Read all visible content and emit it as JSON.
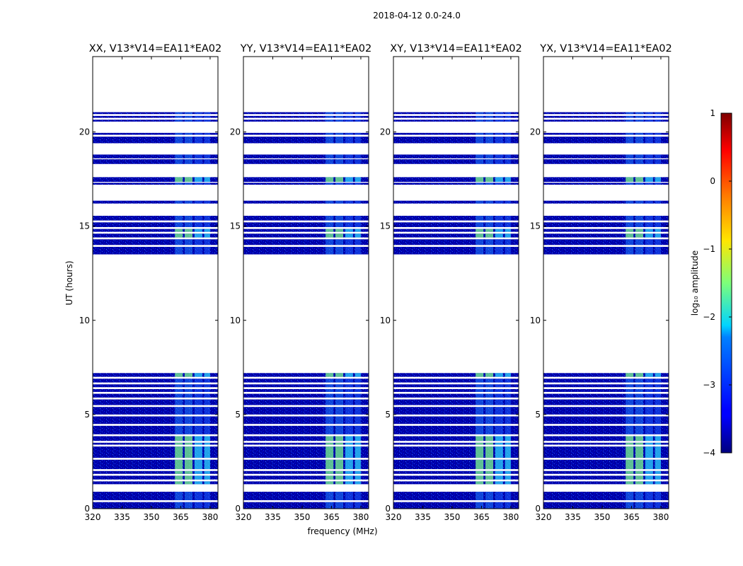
{
  "chart_data": {
    "type": "heatmap",
    "suptitle": "2018-04-12 0.0-24.0",
    "xlabel": "frequency (MHz)",
    "ylabel": "UT (hours)",
    "xlim": [
      320,
      384
    ],
    "ylim": [
      0,
      24
    ],
    "xticks": [
      320,
      335,
      350,
      365,
      380
    ],
    "yticks": [
      0,
      5,
      10,
      15,
      20
    ],
    "panels": [
      {
        "title": "XX, V13*V14=EA11*EA02",
        "pol": "XX"
      },
      {
        "title": "YY, V13*V14=EA11*EA02",
        "pol": "YY"
      },
      {
        "title": "XY, V13*V14=EA11*EA02",
        "pol": "XY"
      },
      {
        "title": "YX, V13*V14=EA11*EA02",
        "pol": "YX"
      }
    ],
    "data_segments_ut_hours": [
      [
        0.0,
        0.35
      ],
      [
        0.45,
        0.9
      ],
      [
        1.3,
        1.45
      ],
      [
        1.55,
        1.75
      ],
      [
        1.85,
        2.0
      ],
      [
        2.1,
        2.6
      ],
      [
        2.7,
        3.3
      ],
      [
        3.4,
        3.5
      ],
      [
        3.6,
        3.85
      ],
      [
        3.95,
        4.4
      ],
      [
        4.5,
        4.9
      ],
      [
        5.0,
        5.4
      ],
      [
        5.5,
        5.8
      ],
      [
        5.9,
        6.1
      ],
      [
        6.2,
        6.35
      ],
      [
        6.45,
        6.6
      ],
      [
        6.7,
        6.9
      ],
      [
        7.0,
        7.2
      ],
      [
        13.5,
        13.9
      ],
      [
        14.0,
        14.3
      ],
      [
        14.4,
        14.6
      ],
      [
        14.7,
        14.85
      ],
      [
        14.95,
        15.2
      ],
      [
        15.3,
        15.55
      ],
      [
        16.2,
        16.35
      ],
      [
        17.2,
        17.3
      ],
      [
        17.35,
        17.6
      ],
      [
        18.3,
        18.55
      ],
      [
        18.6,
        18.8
      ],
      [
        19.4,
        19.75
      ],
      [
        19.85,
        19.95
      ],
      [
        20.55,
        20.65
      ],
      [
        20.75,
        20.85
      ],
      [
        20.95,
        21.05
      ]
    ],
    "bright_channels_mhz": [
      [
        362,
        366
      ],
      [
        367,
        371
      ],
      [
        372,
        376
      ],
      [
        377,
        380
      ]
    ],
    "colorbar": {
      "label": "log₁₀ amplitude",
      "range": [
        -4,
        1
      ],
      "ticks": [
        -4,
        -3,
        -2,
        -1,
        0,
        1
      ],
      "tick_labels": [
        "−4",
        "−3",
        "−2",
        "−1",
        "0",
        "1"
      ],
      "colormap": "jet"
    }
  }
}
